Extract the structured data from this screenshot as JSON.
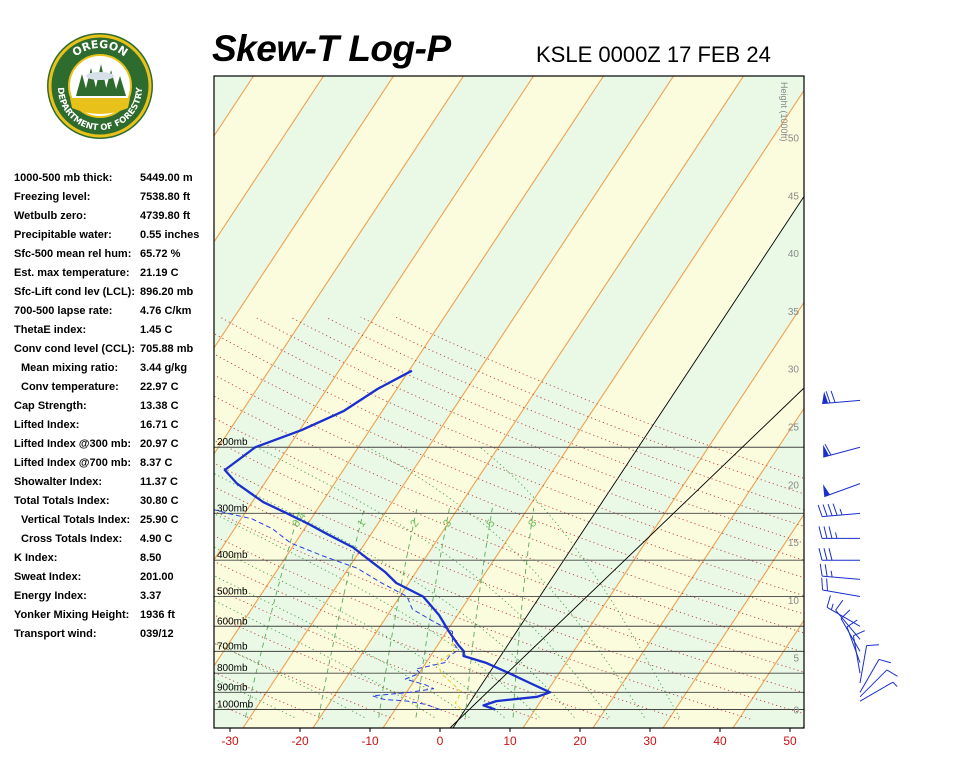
{
  "header": {
    "title": "Skew-T Log-P",
    "station": "KSLE 0000Z 17 FEB 24"
  },
  "logo": {
    "top_text": "OREGON",
    "bottom_text": "DEPARTMENT OF FORESTRY"
  },
  "indices": [
    {
      "label": "1000-500 mb thick:",
      "value": "5449.00 m",
      "indent": false
    },
    {
      "label": "Freezing level:",
      "value": "7538.80 ft",
      "indent": false
    },
    {
      "label": "Wetbulb zero:",
      "value": "4739.80 ft",
      "indent": false
    },
    {
      "label": "Precipitable water:",
      "value": "0.55 inches",
      "indent": false
    },
    {
      "label": "Sfc-500 mean rel hum:",
      "value": "65.72 %",
      "indent": false
    },
    {
      "label": "Est. max temperature:",
      "value": "21.19 C",
      "indent": false
    },
    {
      "label": "Sfc-Lift cond lev (LCL):",
      "value": "896.20 mb",
      "indent": false
    },
    {
      "label": "700-500 lapse rate:",
      "value": "4.76 C/km",
      "indent": false
    },
    {
      "label": "ThetaE index:",
      "value": "1.45 C",
      "indent": false
    },
    {
      "label": "Conv cond level (CCL):",
      "value": "705.88 mb",
      "indent": false
    },
    {
      "label": "Mean mixing ratio:",
      "value": "3.44 g/kg",
      "indent": true
    },
    {
      "label": "Conv temperature:",
      "value": "22.97 C",
      "indent": true
    },
    {
      "label": "Cap Strength:",
      "value": "13.38 C",
      "indent": false
    },
    {
      "label": "Lifted Index:",
      "value": "16.71 C",
      "indent": false
    },
    {
      "label": "Lifted Index @300 mb:",
      "value": "20.97 C",
      "indent": false
    },
    {
      "label": "Lifted Index @700 mb:",
      "value": "8.37 C",
      "indent": false
    },
    {
      "label": "Showalter Index:",
      "value": "11.37 C",
      "indent": false
    },
    {
      "label": "Total Totals Index:",
      "value": "30.80 C",
      "indent": false
    },
    {
      "label": "Vertical Totals Index:",
      "value": "25.90 C",
      "indent": true
    },
    {
      "label": "Cross Totals Index:",
      "value": "4.90 C",
      "indent": true
    },
    {
      "label": "K Index:",
      "value": "8.50",
      "indent": false
    },
    {
      "label": "Sweat Index:",
      "value": "201.00",
      "indent": false
    },
    {
      "label": "Energy Index:",
      "value": "3.37",
      "indent": false
    },
    {
      "label": "Yonker Mixing Height:",
      "value": "1936 ft",
      "indent": false
    },
    {
      "label": "Transport wind:",
      "value": "039/12",
      "indent": false
    }
  ],
  "chart_data": {
    "type": "line",
    "xlim": [
      -33,
      50
    ],
    "x_ticks": [
      -30,
      -20,
      -10,
      0,
      10,
      20,
      30,
      40,
      50
    ],
    "pressure_levels": [
      {
        "p": 200,
        "label": "200mb"
      },
      {
        "p": 300,
        "label": "300mb"
      },
      {
        "p": 400,
        "label": "400mb"
      },
      {
        "p": 500,
        "label": "500mb"
      },
      {
        "p": 600,
        "label": "600mb"
      },
      {
        "p": 700,
        "label": "700mb"
      },
      {
        "p": 800,
        "label": "800mb"
      },
      {
        "p": 900,
        "label": "900mb"
      },
      {
        "p": 1000,
        "label": "1000mb"
      }
    ],
    "height_axis_label": "Height (1000ft)",
    "height_ticks": [
      {
        "label": "0",
        "h_kft": 0.5
      },
      {
        "label": "5",
        "h_kft": 5
      },
      {
        "label": "10",
        "h_kft": 10
      },
      {
        "label": "15",
        "h_kft": 15
      },
      {
        "label": "20",
        "h_kft": 20
      },
      {
        "label": "25",
        "h_kft": 25
      },
      {
        "label": "30",
        "h_kft": 30
      },
      {
        "label": "35",
        "h_kft": 35
      },
      {
        "label": "40",
        "h_kft": 40
      },
      {
        "label": "45",
        "h_kft": 45
      },
      {
        "label": "50",
        "h_kft": 50
      }
    ],
    "mixing_ratio_labels": [
      "0.4",
      "1",
      "2",
      "3",
      "5",
      "8"
    ],
    "series": [
      {
        "values": [
          {
            "p": 1000,
            "t": 7.9
          },
          {
            "p": 975,
            "t": 5.8
          },
          {
            "p": 950,
            "t": 7.2
          },
          {
            "p": 925,
            "t": 12.6
          },
          {
            "p": 900,
            "t": 14.0
          },
          {
            "p": 850,
            "t": 10.2
          },
          {
            "p": 800,
            "t": 6.2
          },
          {
            "p": 750,
            "t": 1.8
          },
          {
            "p": 720,
            "t": -2.0
          },
          {
            "p": 700,
            "t": -2.4
          },
          {
            "p": 670,
            "t": -4.0
          },
          {
            "p": 620,
            "t": -6.5
          },
          {
            "p": 560,
            "t": -9.6
          },
          {
            "p": 500,
            "t": -13.7
          },
          {
            "p": 460,
            "t": -18.9
          },
          {
            "p": 430,
            "t": -21.6
          },
          {
            "p": 400,
            "t": -25.0
          },
          {
            "p": 370,
            "t": -28.6
          },
          {
            "p": 340,
            "t": -33.8
          },
          {
            "p": 320,
            "t": -37.4
          },
          {
            "p": 300,
            "t": -41.5
          },
          {
            "p": 280,
            "t": -46.0
          },
          {
            "p": 250,
            "t": -51.6
          },
          {
            "p": 230,
            "t": -54.7
          },
          {
            "p": 200,
            "t": -52.6
          },
          {
            "p": 180,
            "t": -47.7
          },
          {
            "p": 160,
            "t": -43.6
          },
          {
            "p": 140,
            "t": -41.0
          },
          {
            "p": 125,
            "t": -37.9
          }
        ]
      },
      {
        "values": [
          {
            "p": 1000,
            "t": 0.0
          },
          {
            "p": 970,
            "t": -2.5
          },
          {
            "p": 950,
            "t": -5.5
          },
          {
            "p": 940,
            "t": -9.0
          },
          {
            "p": 920,
            "t": -11.0
          },
          {
            "p": 900,
            "t": -6.0
          },
          {
            "p": 880,
            "t": -3.0
          },
          {
            "p": 860,
            "t": -4.5
          },
          {
            "p": 830,
            "t": -8.0
          },
          {
            "p": 800,
            "t": -6.5
          },
          {
            "p": 780,
            "t": -7.5
          },
          {
            "p": 750,
            "t": -4.0
          },
          {
            "p": 720,
            "t": -4.0
          },
          {
            "p": 700,
            "t": -3.5
          },
          {
            "p": 690,
            "t": -3.5
          },
          {
            "p": 660,
            "t": -5.0
          },
          {
            "p": 620,
            "t": -6.0
          },
          {
            "p": 580,
            "t": -10.0
          },
          {
            "p": 540,
            "t": -14.0
          },
          {
            "p": 500,
            "t": -16.0
          },
          {
            "p": 460,
            "t": -21.0
          },
          {
            "p": 420,
            "t": -26.0
          },
          {
            "p": 390,
            "t": -32.0
          },
          {
            "p": 360,
            "t": -38.0
          },
          {
            "p": 330,
            "t": -42.0
          },
          {
            "p": 310,
            "t": -46.0
          },
          {
            "p": 300,
            "t": -50.0
          },
          {
            "p": 280,
            "t": -57.0
          },
          {
            "p": 265,
            "t": -59.0
          },
          {
            "p": 255,
            "t": -62.0
          },
          {
            "p": 240,
            "t": -63.0
          },
          {
            "p": 225,
            "t": -66.0
          },
          {
            "p": 210,
            "t": -66.0
          },
          {
            "p": 190,
            "t": -68.0
          },
          {
            "p": 175,
            "t": -69.0
          },
          {
            "p": 160,
            "t": -70.0
          },
          {
            "p": 145,
            "t": -72.0
          },
          {
            "p": 125,
            "t": -75.0
          }
        ]
      },
      {
        "values": [
          {
            "p": 1000,
            "t": 3.0
          },
          {
            "p": 960,
            "t": 1.5
          },
          {
            "p": 940,
            "t": 1.5
          },
          {
            "p": 896,
            "t": 1.2
          },
          {
            "p": 800,
            "t": -3.5
          },
          {
            "p": 750,
            "t": -5.0
          },
          {
            "p": 706,
            "t": -4.0
          },
          {
            "p": 690,
            "t": -4.0
          },
          {
            "p": 660,
            "t": -5.0
          }
        ]
      }
    ],
    "wind_barbs": [
      {
        "p": 150,
        "dir": 265,
        "spd": 70
      },
      {
        "p": 200,
        "dir": 255,
        "spd": 60
      },
      {
        "p": 250,
        "dir": 250,
        "spd": 50
      },
      {
        "p": 300,
        "dir": 265,
        "spd": 45
      },
      {
        "p": 350,
        "dir": 270,
        "spd": 35
      },
      {
        "p": 400,
        "dir": 270,
        "spd": 30
      },
      {
        "p": 450,
        "dir": 275,
        "spd": 25
      },
      {
        "p": 500,
        "dir": 280,
        "spd": 20
      },
      {
        "p": 600,
        "dir": 300,
        "spd": 15
      },
      {
        "p": 650,
        "dir": 320,
        "spd": 10
      },
      {
        "p": 700,
        "dir": 330,
        "spd": 10
      },
      {
        "p": 750,
        "dir": 340,
        "spd": 10
      },
      {
        "p": 800,
        "dir": 350,
        "spd": 10
      },
      {
        "p": 850,
        "dir": 10,
        "spd": 10
      },
      {
        "p": 900,
        "dir": 30,
        "spd": 10
      },
      {
        "p": 925,
        "dir": 45,
        "spd": 10
      },
      {
        "p": 950,
        "dir": 60,
        "spd": 5
      }
    ]
  }
}
